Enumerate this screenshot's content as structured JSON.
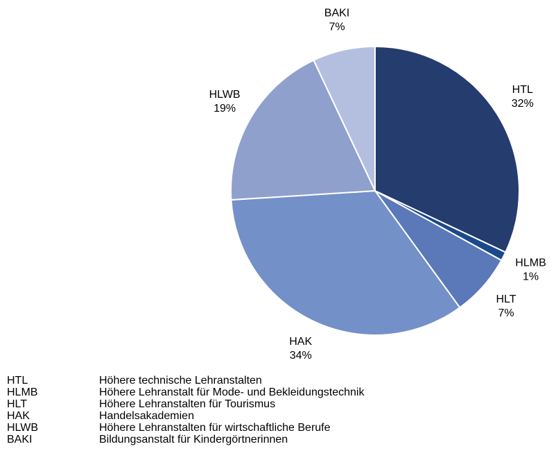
{
  "chart_data": {
    "type": "pie",
    "categories": [
      "HTL",
      "HLMB",
      "HLT",
      "HAK",
      "HLWB",
      "BAKI"
    ],
    "values": [
      32,
      1,
      7,
      34,
      19,
      7
    ],
    "value_labels": [
      "32%",
      "1%",
      "7%",
      "34%",
      "19%",
      "7%"
    ],
    "colors": [
      "#243c6e",
      "#1b4a8c",
      "#5b78b8",
      "#7490c8",
      "#8fa0cc",
      "#b4bfe0"
    ]
  },
  "glossary": [
    "Höhere technische Lehranstalten",
    "Höhere Lehranstalt für Mode- und Bekleidungstechnik",
    "Höhere Lehranstalten für Tourismus",
    "Handelsakademien",
    "Höhere Lehranstalten für wirtschaftliche Berufe",
    "Bildungsanstalt für Kindergörtnerinnen"
  ]
}
